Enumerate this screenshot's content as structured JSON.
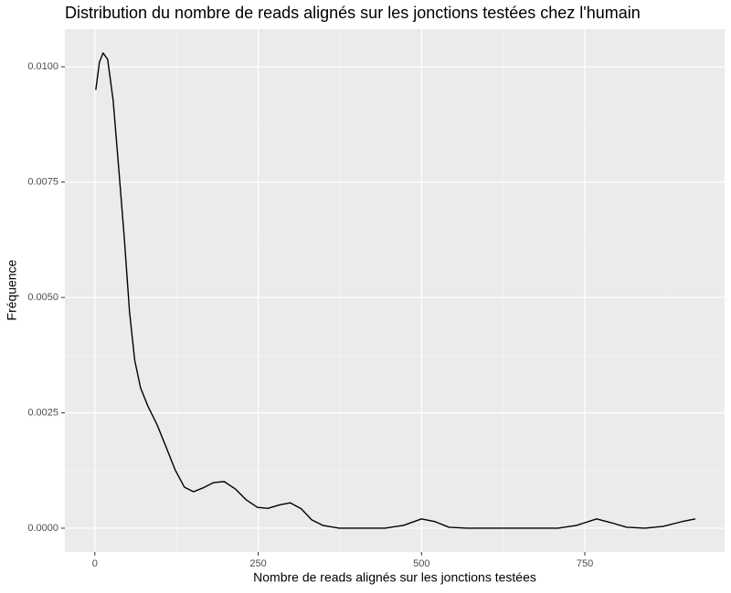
{
  "chart_data": {
    "type": "line",
    "title": "Distribution du nombre de reads alignés sur les jonctions testées chez l'humain",
    "x_label": "Nombre de reads alignés sur les jonctions testées",
    "y_label": "Fréquence",
    "x": [
      1.4,
      7,
      12.6,
      19.6,
      28,
      36,
      45,
      53,
      61,
      70,
      81,
      95,
      109,
      123,
      137,
      151,
      165,
      182,
      198,
      215,
      232,
      249,
      265,
      284,
      299,
      316,
      332,
      349,
      374,
      444,
      472,
      500,
      521,
      542,
      570,
      709,
      737,
      768,
      790,
      814,
      842,
      870,
      898,
      919
    ],
    "series": [
      {
        "color": "#000000",
        "values": [
          0.0095,
          0.0101,
          0.0103,
          0.01016,
          0.00927,
          0.00789,
          0.0063,
          0.0047,
          0.00364,
          0.00304,
          0.00265,
          0.00225,
          0.00176,
          0.00126,
          0.00089,
          0.00079,
          0.00087,
          0.00099,
          0.00101,
          0.00085,
          0.00061,
          0.00045,
          0.00043,
          0.00051,
          0.00055,
          0.00042,
          0.00018,
          6e-05,
          0,
          0,
          6e-05,
          0.0002,
          0.00014,
          2e-05,
          0,
          0,
          6e-05,
          0.0002,
          0.00012,
          2e-05,
          0,
          4e-05,
          0.00014,
          0.0002
        ]
      }
    ],
    "xlim": [
      -45.9,
      963.9
    ],
    "ylim": [
      -0.000515,
      0.010815
    ],
    "xticks": [
      0,
      250,
      500,
      750
    ],
    "yticks": [
      {
        "value": 0,
        "label": "0.0000"
      },
      {
        "value": 0.0025,
        "label": "0.0025"
      },
      {
        "value": 0.005,
        "label": "0.0050"
      },
      {
        "value": 0.0075,
        "label": "0.0075"
      },
      {
        "value": 0.01,
        "label": "0.0100"
      }
    ],
    "x_minor_grid": [
      125,
      375,
      625,
      875
    ],
    "y_minor_grid": [
      0.00125,
      0.00375,
      0.00625,
      0.00875
    ],
    "grid": true
  }
}
